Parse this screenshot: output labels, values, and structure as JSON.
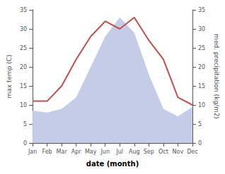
{
  "chart_data": {
    "type": "line",
    "categories": [
      "Jan",
      "Feb",
      "Mar",
      "Apr",
      "May",
      "Jun",
      "Jul",
      "Aug",
      "Sep",
      "Oct",
      "Nov",
      "Dec"
    ],
    "series": [
      {
        "type": "area",
        "color": "#c5cce8",
        "axis": "y2",
        "values": [
          8.5,
          8.0,
          9.0,
          12.0,
          20.0,
          28.0,
          33.0,
          29.0,
          18.0,
          9.0,
          7.0,
          9.5
        ]
      },
      {
        "type": "line",
        "color": "#c0504d",
        "values": [
          11,
          11,
          15,
          22,
          28,
          32,
          30,
          33,
          27,
          22,
          12,
          10
        ]
      }
    ],
    "xlabel": "date (month)",
    "ylabel": "max temp (C)",
    "y2label": "med. precipitation (kg/m2)",
    "ylim": [
      0,
      35
    ],
    "yticks": [
      0,
      5,
      10,
      15,
      20,
      25,
      30,
      35
    ],
    "y2lim": [
      0,
      35
    ],
    "y2ticks": [
      0,
      5,
      10,
      15,
      20,
      25,
      30,
      35
    ],
    "grid": false
  }
}
